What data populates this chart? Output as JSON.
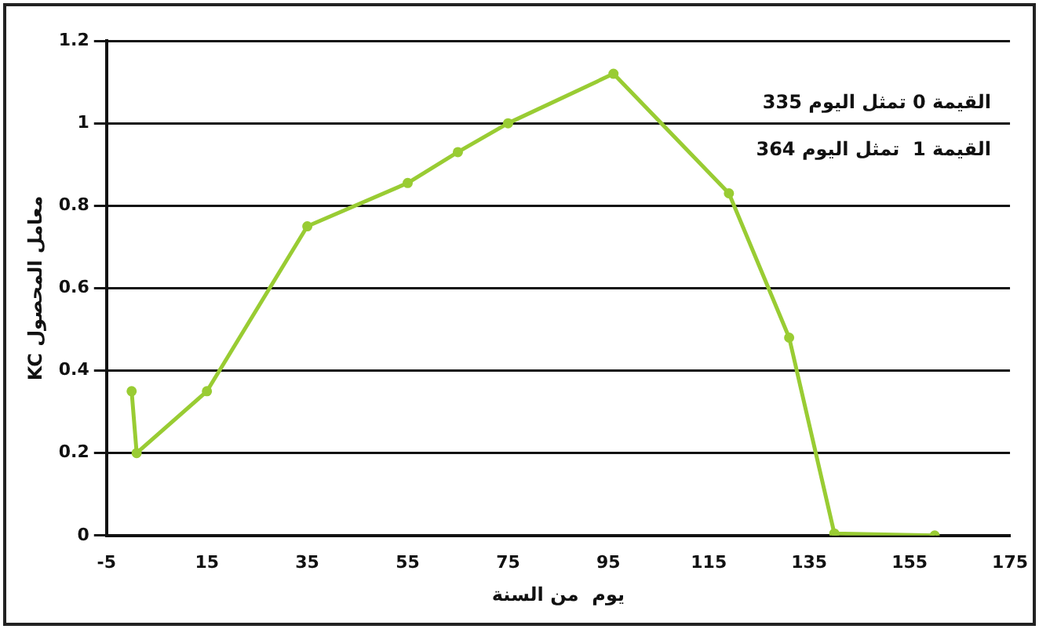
{
  "chart_data": {
    "type": "line",
    "xlabel": "يوم  من السنة",
    "ylabel": "KC معامل المحصول",
    "x": [
      0,
      1,
      15,
      35,
      55,
      65,
      75,
      96,
      119,
      131,
      140,
      160
    ],
    "values": [
      0.35,
      0.2,
      0.35,
      0.75,
      0.855,
      0.93,
      1.0,
      1.12,
      0.83,
      0.48,
      0.005,
      0
    ],
    "color": "#99cc33",
    "marker": "circle",
    "line_style": "solid",
    "grid": "y",
    "legend": false,
    "xlim": [
      -5,
      175
    ],
    "xticks": [
      -5,
      15,
      35,
      55,
      75,
      95,
      115,
      135,
      155,
      175
    ],
    "ylim": [
      0,
      1.2
    ],
    "yticks": [
      0,
      0.2,
      0.4,
      0.6,
      0.8,
      1,
      1.2
    ],
    "annotations": [
      "القيمة 0 تمثل اليوم 335",
      "القيمة 1  تمثل اليوم 364"
    ]
  }
}
